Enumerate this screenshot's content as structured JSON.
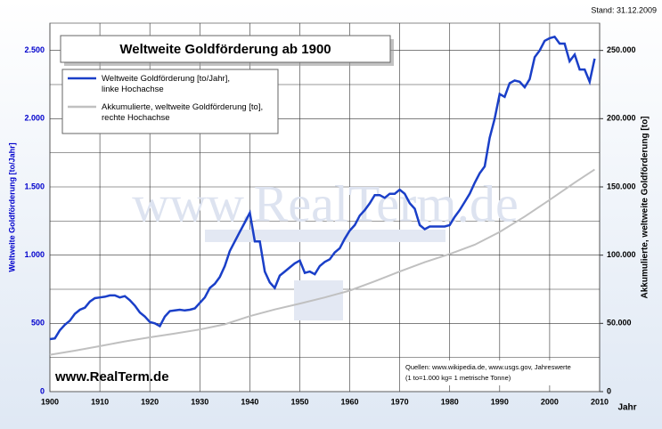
{
  "chart_data": {
    "type": "line",
    "title": "Weltweite Goldförderung ab 1900",
    "stand": "Stand: 31.12.2009",
    "ylabel": "Weltweite Goldförderung [to/Jahr]",
    "y2label": "Akkumulierte, weltweite Goldförderung [to]",
    "xlabel": "Jahr",
    "site": "www.RealTerm.de",
    "watermark": "www.RealTerm.de",
    "sources": [
      "Quellen: www.wikipedia.de, www.usgs.gov, Jahreswerte",
      "(1 to=1.000 kg= 1 metrische Tonne)"
    ],
    "xlim": [
      1900,
      2010
    ],
    "xticks": [
      1900,
      1910,
      1920,
      1930,
      1940,
      1950,
      1960,
      1970,
      1980,
      1990,
      2000,
      2010
    ],
    "ylim": [
      0,
      2700
    ],
    "yticks": [
      0,
      500,
      {
        "value": 1000,
        "label": "1.000"
      },
      {
        "value": 1500,
        "label": "1.500"
      },
      {
        "value": 2000,
        "label": "2.000"
      },
      {
        "value": 2500,
        "label": "2.500"
      }
    ],
    "yminorticks": [
      250,
      750,
      1250,
      1750,
      2250
    ],
    "y2lim": [
      0,
      270000
    ],
    "y2ticks": [
      0,
      {
        "value": 50000,
        "label": "50.000"
      },
      {
        "value": 100000,
        "label": "100.000"
      },
      {
        "value": 150000,
        "label": "150.000"
      },
      {
        "value": 200000,
        "label": "200.000"
      },
      {
        "value": 250000,
        "label": "250.000"
      }
    ],
    "grid": true,
    "series": [
      {
        "name": "Weltweite Goldförderung [to/Jahr],\nlinke Hochachse",
        "color": "#1a3fc8",
        "x": [
          1900,
          1901,
          1902,
          1903,
          1904,
          1905,
          1906,
          1907,
          1908,
          1909,
          1910,
          1911,
          1912,
          1913,
          1914,
          1915,
          1916,
          1917,
          1918,
          1919,
          1920,
          1921,
          1922,
          1923,
          1924,
          1925,
          1926,
          1927,
          1928,
          1929,
          1930,
          1931,
          1932,
          1933,
          1934,
          1935,
          1936,
          1937,
          1938,
          1939,
          1940,
          1941,
          1942,
          1943,
          1944,
          1945,
          1946,
          1947,
          1948,
          1949,
          1950,
          1951,
          1952,
          1953,
          1954,
          1955,
          1956,
          1957,
          1958,
          1959,
          1960,
          1961,
          1962,
          1963,
          1964,
          1965,
          1966,
          1967,
          1968,
          1969,
          1970,
          1971,
          1972,
          1973,
          1974,
          1975,
          1976,
          1977,
          1978,
          1979,
          1980,
          1981,
          1982,
          1983,
          1984,
          1985,
          1986,
          1987,
          1988,
          1989,
          1990,
          1991,
          1992,
          1993,
          1994,
          1995,
          1996,
          1997,
          1998,
          1999,
          2000,
          2001,
          2002,
          2003,
          2004,
          2005,
          2006,
          2007,
          2008,
          2009
        ],
        "values": [
          385,
          390,
          450,
          490,
          520,
          570,
          600,
          615,
          660,
          685,
          690,
          695,
          705,
          705,
          690,
          700,
          670,
          630,
          580,
          550,
          510,
          500,
          480,
          550,
          590,
          595,
          600,
          595,
          600,
          610,
          650,
          690,
          760,
          790,
          840,
          920,
          1030,
          1100,
          1170,
          1240,
          1310,
          1100,
          1100,
          880,
          800,
          760,
          850,
          880,
          910,
          940,
          960,
          870,
          880,
          860,
          920,
          950,
          970,
          1020,
          1050,
          1120,
          1180,
          1220,
          1290,
          1330,
          1380,
          1440,
          1440,
          1420,
          1450,
          1450,
          1480,
          1450,
          1380,
          1340,
          1220,
          1190,
          1210,
          1210,
          1210,
          1210,
          1220,
          1280,
          1330,
          1390,
          1450,
          1530,
          1600,
          1650,
          1860,
          2000,
          2180,
          2160,
          2260,
          2280,
          2270,
          2230,
          2290,
          2450,
          2500,
          2570,
          2590,
          2600,
          2550,
          2550,
          2420,
          2470,
          2360,
          2360,
          2270,
          2440
        ]
      },
      {
        "name": "Akkumulierte, weltweite  Goldförderung [to],\nrechte Hochachse",
        "color": "#c0c0c0",
        "axis": "y2",
        "x": [
          1900,
          1905,
          1910,
          1915,
          1920,
          1925,
          1930,
          1935,
          1940,
          1945,
          1950,
          1955,
          1960,
          1965,
          1970,
          1975,
          1980,
          1985,
          1990,
          1995,
          2000,
          2005,
          2009
        ],
        "values": [
          27000,
          30000,
          33300,
          36800,
          39800,
          42500,
          45500,
          49300,
          55300,
          60200,
          64500,
          69000,
          74000,
          80800,
          88000,
          94800,
          100800,
          107600,
          117000,
          128300,
          140500,
          153100,
          162800
        ]
      }
    ]
  }
}
